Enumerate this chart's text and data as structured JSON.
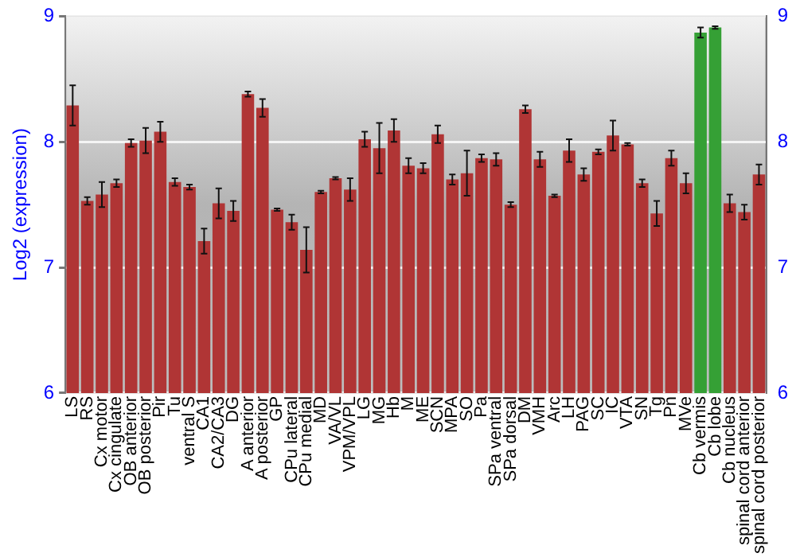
{
  "chart_data": {
    "type": "bar",
    "ylabel": "Log2 (expression)",
    "categories": [
      "LS",
      "RS",
      "Cx motor",
      "Cx cingulate",
      "OB anterior",
      "OB posterior",
      "Pir",
      "Tu",
      "ventral S",
      "CA1",
      "CA2/CA3",
      "DG",
      "A anterior",
      "A posterior",
      "GP",
      "CPu lateral",
      "CPu medial",
      "MD",
      "VA/VL",
      "VPM/VPL",
      "LG",
      "MG",
      "Hb",
      "M",
      "ME",
      "SCN",
      "MPA",
      "SO",
      "Pa",
      "SPa ventral",
      "SPa dorsal",
      "DM",
      "VMH",
      "Arc",
      "LH",
      "PAG",
      "SC",
      "IC",
      "VTA",
      "SN",
      "Tg",
      "Pn",
      "MVe",
      "Cb vermis",
      "Cb lobe",
      "Cb nucleus",
      "spinal cord anterior",
      "spinal cord posterior"
    ],
    "values": [
      8.29,
      7.53,
      7.58,
      7.67,
      7.99,
      8.01,
      8.08,
      7.68,
      7.64,
      7.21,
      7.51,
      7.45,
      8.38,
      8.27,
      7.46,
      7.36,
      7.14,
      7.6,
      7.71,
      7.62,
      8.02,
      7.95,
      8.09,
      7.81,
      7.79,
      8.06,
      7.7,
      7.75,
      7.87,
      7.86,
      7.5,
      8.26,
      7.86,
      7.57,
      7.93,
      7.74,
      7.92,
      8.05,
      7.98,
      7.67,
      7.43,
      7.87,
      7.67,
      8.87,
      8.91,
      7.51,
      7.44,
      7.74
    ],
    "errors": [
      0.16,
      0.03,
      0.1,
      0.03,
      0.03,
      0.1,
      0.08,
      0.03,
      0.02,
      0.1,
      0.12,
      0.08,
      0.02,
      0.07,
      0.01,
      0.06,
      0.18,
      0.01,
      0.01,
      0.09,
      0.06,
      0.2,
      0.09,
      0.06,
      0.04,
      0.07,
      0.04,
      0.18,
      0.03,
      0.05,
      0.02,
      0.03,
      0.06,
      0.01,
      0.09,
      0.05,
      0.02,
      0.12,
      0.01,
      0.03,
      0.1,
      0.06,
      0.08,
      0.04,
      0.01,
      0.07,
      0.06,
      0.08
    ],
    "colors": [
      "#b03535",
      "#b03535",
      "#b03535",
      "#b03535",
      "#b03535",
      "#b03535",
      "#b03535",
      "#b03535",
      "#b03535",
      "#b03535",
      "#b03535",
      "#b03535",
      "#b03535",
      "#b03535",
      "#b03535",
      "#b03535",
      "#b03535",
      "#b03535",
      "#b03535",
      "#b03535",
      "#b03535",
      "#b03535",
      "#b03535",
      "#b03535",
      "#b03535",
      "#b03535",
      "#b03535",
      "#b03535",
      "#b03535",
      "#b03535",
      "#b03535",
      "#b03535",
      "#b03535",
      "#b03535",
      "#b03535",
      "#b03535",
      "#b03535",
      "#b03535",
      "#b03535",
      "#b03535",
      "#b03535",
      "#b03535",
      "#b03535",
      "#35a035",
      "#35a035",
      "#b03535",
      "#b03535",
      "#b03535"
    ],
    "ylim": [
      6,
      9
    ],
    "yticks": [
      6,
      7,
      8,
      9
    ],
    "y2lim": [
      6,
      9
    ],
    "y2ticks": [
      6,
      7,
      8,
      9
    ],
    "grid": "y",
    "legend": false
  }
}
